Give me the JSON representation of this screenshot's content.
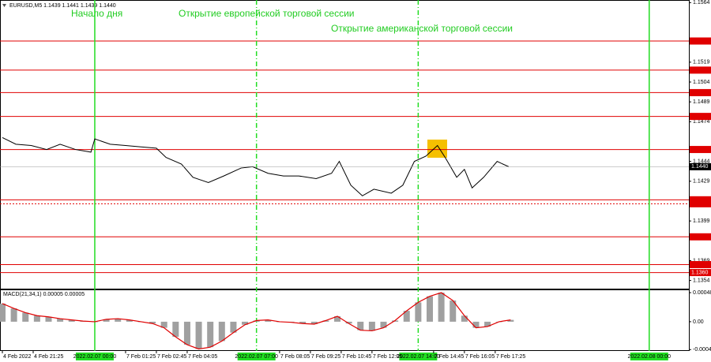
{
  "chart_data": [
    {
      "type": "line",
      "title": "EURUSD,M5  1.1439 1.1441 1.1439 1.1440",
      "color": "#000000",
      "annotations": [
        "Начало дня",
        "Открытие европейской торговой сессии",
        "Открытие американской торговой сессии"
      ],
      "x": [
        0,
        7,
        15,
        23,
        30,
        38,
        46,
        48,
        56,
        64,
        72,
        80,
        85,
        93,
        99,
        107,
        115,
        124,
        130,
        138,
        146,
        154,
        163,
        171,
        175,
        181,
        187,
        193,
        202,
        208,
        214,
        220,
        226,
        230,
        236,
        240,
        244,
        250,
        257,
        263
      ],
      "values": [
        1.1462,
        1.1457,
        1.1456,
        1.1453,
        1.1457,
        1.1453,
        1.1451,
        1.1461,
        1.1457,
        1.1456,
        1.1455,
        1.1454,
        1.1447,
        1.1442,
        1.1432,
        1.1428,
        1.1433,
        1.1439,
        1.144,
        1.1435,
        1.1433,
        1.1433,
        1.1431,
        1.1435,
        1.1444,
        1.1426,
        1.1418,
        1.1423,
        1.142,
        1.1426,
        1.1444,
        1.1448,
        1.1456,
        1.1447,
        1.1432,
        1.1438,
        1.1424,
        1.1432,
        1.1444,
        1.144
      ],
      "xlim": [
        0,
        356
      ],
      "xticks": [
        {
          "value": 0,
          "label": "4 Feb 2022"
        },
        {
          "value": 16,
          "label": "4 Feb 21:25"
        },
        {
          "value": 64,
          "label": "7 Feb 01:25"
        },
        {
          "value": 80,
          "label": "7 Feb 02:45"
        },
        {
          "value": 96,
          "label": "7 Feb 04:05"
        },
        {
          "value": 144,
          "label": "7 Feb 08:05"
        },
        {
          "value": 160,
          "label": "7 Feb 09:25"
        },
        {
          "value": 176,
          "label": "7 Feb 10:45"
        },
        {
          "value": 192,
          "label": "7 Feb 12:05"
        },
        {
          "value": 224,
          "label": "7 Feb 14:45"
        },
        {
          "value": 240,
          "label": "7 Feb 16:05"
        },
        {
          "value": 256,
          "label": "7 Feb 17:25"
        }
      ],
      "markers": [
        {
          "value": 48,
          "label": "2022.02.07 00:00",
          "style": "solid"
        },
        {
          "value": 132,
          "label": "2022.02.07 07:00",
          "style": "dashed"
        },
        {
          "value": 216,
          "label": "2022.02.07 14:00",
          "style": "dashed"
        },
        {
          "value": 336,
          "label": "2022.02.08 00:00",
          "style": "solid"
        }
      ],
      "marker_color": "#22dd22",
      "ylim": [
        1.1352,
        1.1566
      ],
      "yticks": [
        1.1564,
        1.1519,
        1.1504,
        1.1489,
        1.1474,
        1.1444,
        1.1429,
        1.1399,
        1.1369,
        1.1354
      ],
      "levels": [
        {
          "value": 1.1535,
          "style": "solid"
        },
        {
          "value": 1.1513,
          "style": "solid"
        },
        {
          "value": 1.1496,
          "style": "solid"
        },
        {
          "value": 1.1478,
          "style": "solid"
        },
        {
          "value": 1.1453,
          "style": "solid"
        },
        {
          "value": 1.1415,
          "style": "solid"
        },
        {
          "value": 1.1412,
          "style": "dotted"
        },
        {
          "value": 1.1387,
          "style": "solid"
        },
        {
          "value": 1.1366,
          "style": "solid"
        },
        {
          "value": 1.136,
          "label": "1.1360",
          "style": "solid"
        }
      ],
      "level_color": "#e00000",
      "current_price": {
        "value": 1.144,
        "label": "1.1440"
      }
    },
    {
      "type": "histogram",
      "title": "MACD(21,34,1) 0.00005 0.00005",
      "color": "#a0a0a0",
      "line_color": "#e00000",
      "x": [
        0,
        6,
        12,
        18,
        24,
        30,
        36,
        42,
        48,
        54,
        60,
        66,
        72,
        78,
        84,
        90,
        96,
        102,
        108,
        114,
        120,
        126,
        132,
        138,
        144,
        150,
        156,
        162,
        168,
        174,
        180,
        186,
        192,
        198,
        204,
        210,
        216,
        222,
        228,
        234,
        240,
        246,
        252,
        258,
        264
      ],
      "values": [
        0.0003,
        0.00022,
        0.00015,
        0.0001,
        8e-05,
        5e-05,
        3e-05,
        1e-05,
        0,
        4e-05,
        5e-05,
        3e-05,
        0,
        -3e-05,
        -0.0001,
        -0.00025,
        -0.00038,
        -0.00045,
        -0.00042,
        -0.00032,
        -0.00018,
        -5e-05,
        2e-05,
        3e-05,
        0,
        -1e-05,
        -3e-05,
        -4e-05,
        2e-05,
        9e-05,
        -3e-05,
        -0.00014,
        -0.00015,
        -0.0001,
        2e-05,
        0.00018,
        0.00032,
        0.00042,
        0.00048,
        0.00035,
        0.0001,
        -0.0001,
        -8e-05,
        0,
        3e-05
      ],
      "ylim": [
        -0.00047,
        0.00052
      ],
      "yticks": [
        0.00048,
        {
          "value": 0,
          "label": "0.00"
        },
        -0.00046
      ]
    }
  ]
}
